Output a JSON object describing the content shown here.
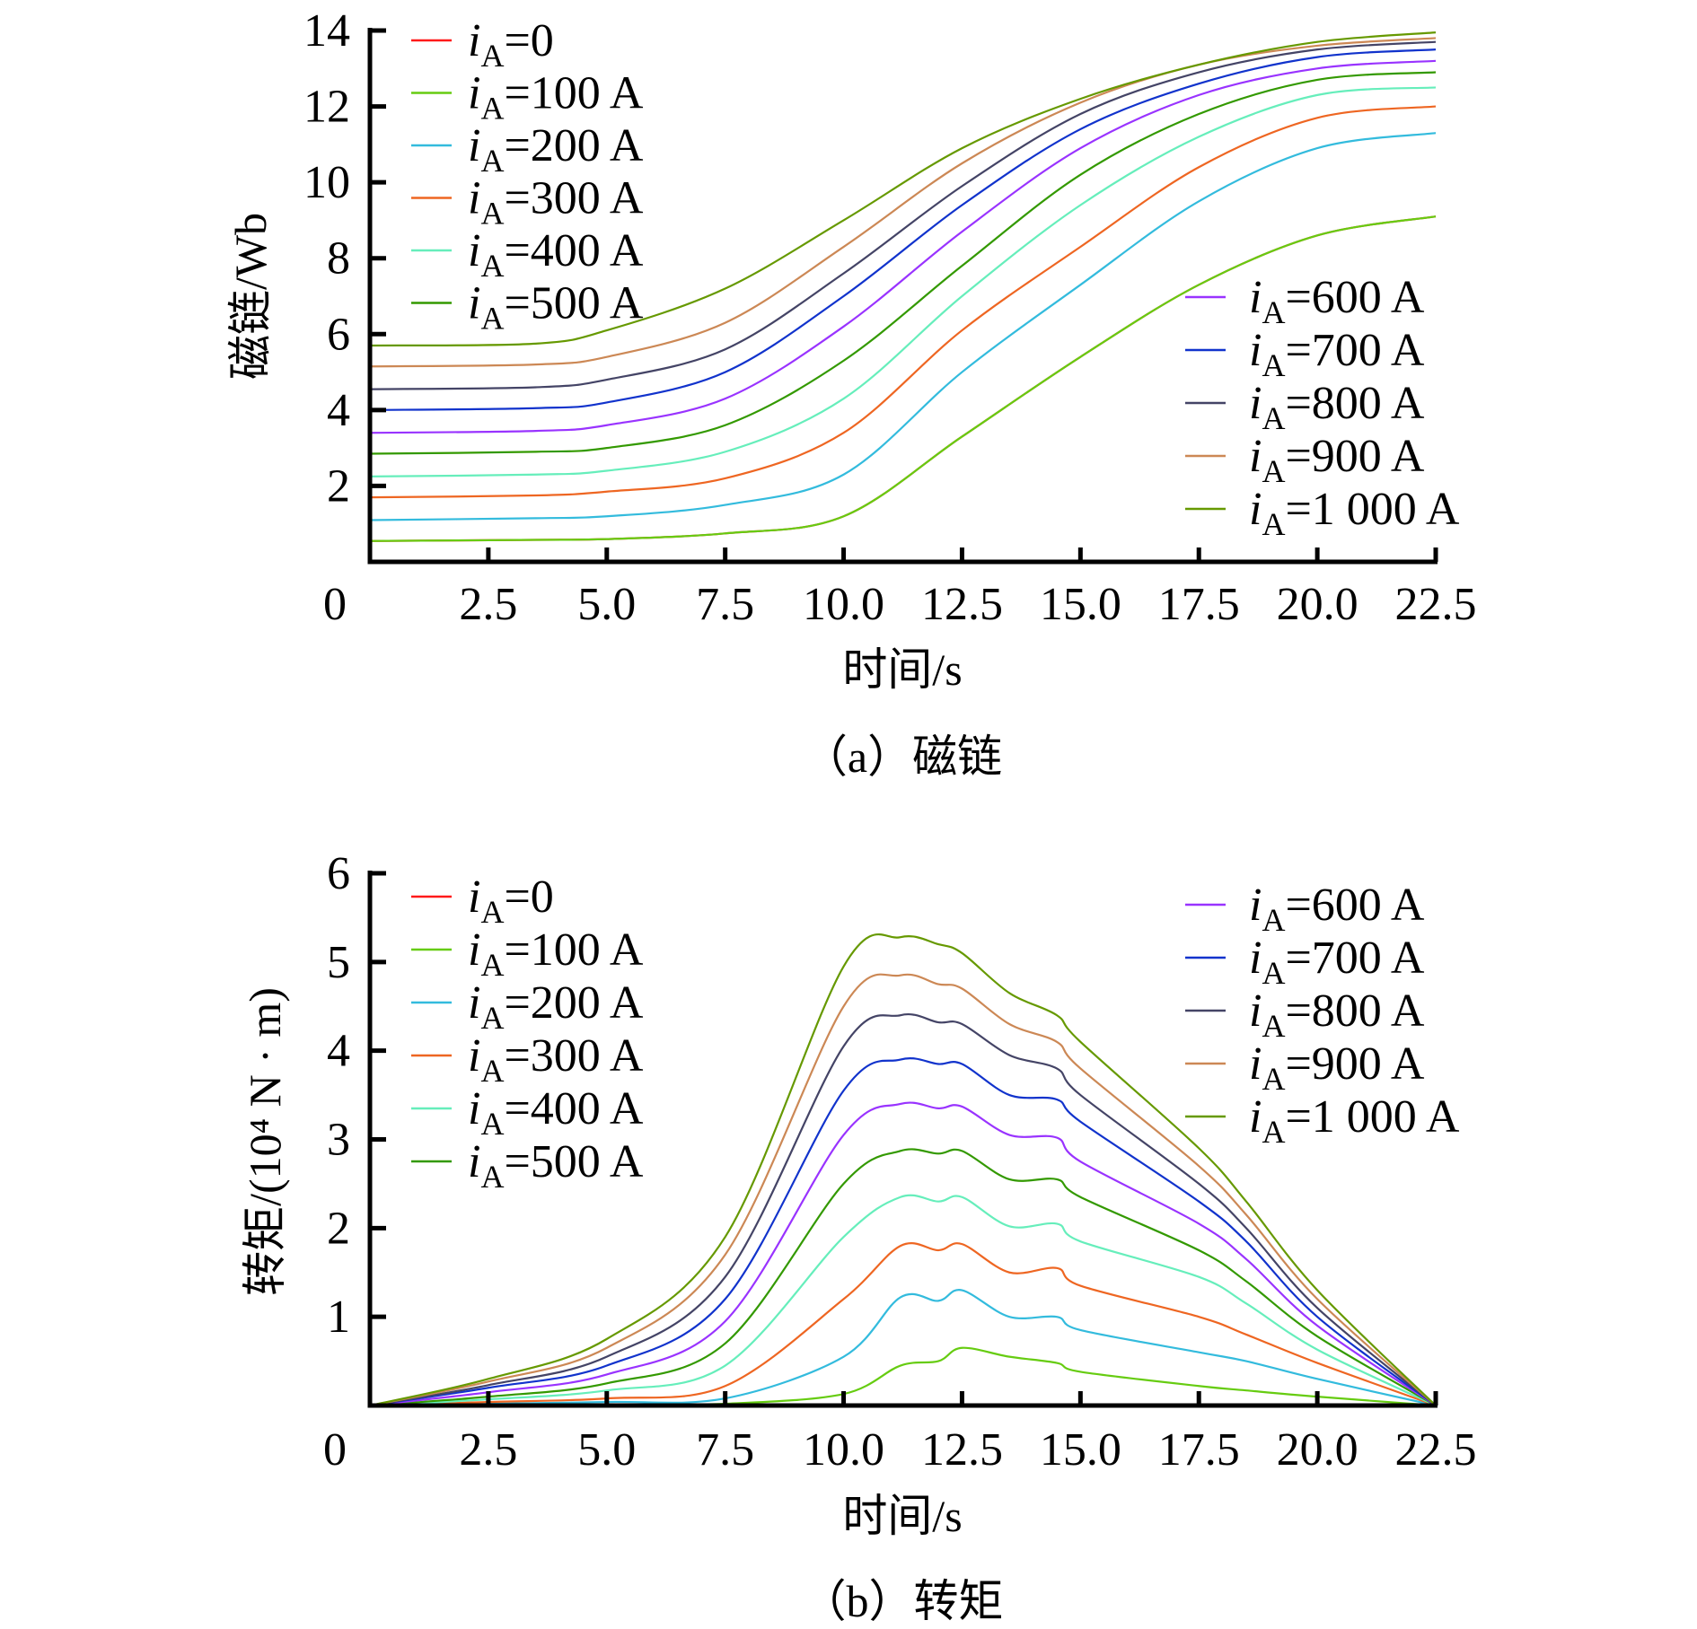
{
  "chart_data": [
    {
      "type": "line",
      "caption": "（a）磁链",
      "xlabel": "时间/s",
      "ylabel": "磁链/Wb",
      "xlim": [
        0,
        22.5
      ],
      "ylim": [
        0,
        14
      ],
      "origin_label": "0",
      "xticks": [
        "2.5",
        "5.0",
        "7.5",
        "10.0",
        "12.5",
        "15.0",
        "17.5",
        "20.0",
        "22.5"
      ],
      "yticks": [
        "2",
        "4",
        "6",
        "8",
        "10",
        "12",
        "14"
      ],
      "grid": false,
      "legend_left_count": 6,
      "x": [
        0,
        3.5,
        5,
        7.5,
        10,
        12.5,
        15,
        17.5,
        20,
        22.5
      ],
      "series": [
        {
          "var": "i",
          "sub": "A",
          "value": "=0",
          "color": "#ff1a1a",
          "y": [
            0.55,
            0.58,
            0.6,
            0.75,
            1.2,
            3.3,
            5.4,
            7.3,
            8.6,
            9.1
          ]
        },
        {
          "var": "i",
          "sub": "A",
          "value": "=100 A",
          "color": "#66cc11",
          "y": [
            0.55,
            0.58,
            0.6,
            0.75,
            1.2,
            3.3,
            5.4,
            7.3,
            8.6,
            9.1
          ]
        },
        {
          "var": "i",
          "sub": "A",
          "value": "=200 A",
          "color": "#33bbdd",
          "y": [
            1.1,
            1.15,
            1.2,
            1.5,
            2.3,
            5.0,
            7.3,
            9.5,
            10.9,
            11.3
          ]
        },
        {
          "var": "i",
          "sub": "A",
          "value": "=300 A",
          "color": "#ee6622",
          "y": [
            1.7,
            1.75,
            1.85,
            2.2,
            3.4,
            6.1,
            8.3,
            10.4,
            11.7,
            12.0
          ]
        },
        {
          "var": "i",
          "sub": "A",
          "value": "=400 A",
          "color": "#66eebb",
          "y": [
            2.25,
            2.3,
            2.4,
            2.9,
            4.3,
            7.0,
            9.4,
            11.2,
            12.3,
            12.5
          ]
        },
        {
          "var": "i",
          "sub": "A",
          "value": "=500 A",
          "color": "#339900",
          "y": [
            2.85,
            2.9,
            3.0,
            3.6,
            5.3,
            7.8,
            10.2,
            11.8,
            12.7,
            12.9
          ]
        },
        {
          "var": "i",
          "sub": "A",
          "value": "=600 A",
          "color": "#9933ff",
          "y": [
            3.4,
            3.45,
            3.6,
            4.3,
            6.2,
            8.7,
            10.9,
            12.3,
            13.0,
            13.2
          ]
        },
        {
          "var": "i",
          "sub": "A",
          "value": "=700 A",
          "color": "#1133cc",
          "y": [
            4.0,
            4.05,
            4.2,
            5.0,
            7.0,
            9.4,
            11.4,
            12.6,
            13.3,
            13.5
          ]
        },
        {
          "var": "i",
          "sub": "A",
          "value": "=800 A",
          "color": "#444466",
          "y": [
            4.55,
            4.6,
            4.8,
            5.6,
            7.6,
            9.9,
            11.8,
            12.9,
            13.5,
            13.7
          ]
        },
        {
          "var": "i",
          "sub": "A",
          "value": "=900 A",
          "color": "#cc8855",
          "y": [
            5.15,
            5.2,
            5.4,
            6.3,
            8.3,
            10.5,
            12.1,
            13.1,
            13.6,
            13.8
          ]
        },
        {
          "var": "i",
          "sub": "A",
          "value": "=1 000 A",
          "color": "#669900",
          "y": [
            5.7,
            5.75,
            6.1,
            7.2,
            9.0,
            10.9,
            12.2,
            13.1,
            13.7,
            13.95
          ]
        }
      ]
    },
    {
      "type": "line",
      "caption": "（b）转矩",
      "xlabel": "时间/s",
      "ylabel": "转矩/(10⁴ N · m)",
      "xlim": [
        0,
        22.5
      ],
      "ylim": [
        0,
        6
      ],
      "origin_label": "0",
      "xticks": [
        "2.5",
        "5.0",
        "7.5",
        "10.0",
        "12.5",
        "15.0",
        "17.5",
        "20.0",
        "22.5"
      ],
      "yticks": [
        "1",
        "2",
        "3",
        "4",
        "5",
        "6"
      ],
      "grid": false,
      "legend_left_count": 6,
      "x": [
        0,
        2.5,
        5,
        7.5,
        10,
        11.2,
        12,
        12.5,
        13.5,
        14.5,
        15,
        17.5,
        18.5,
        20,
        22.5
      ],
      "series": [
        {
          "var": "i",
          "sub": "A",
          "value": "=0",
          "color": "#ff1a1a",
          "y": [
            0,
            0,
            0,
            0,
            0,
            0,
            0,
            0,
            0,
            0,
            0,
            0,
            0,
            0,
            0
          ]
        },
        {
          "var": "i",
          "sub": "A",
          "value": "=100 A",
          "color": "#66cc11",
          "y": [
            0,
            0,
            0.01,
            0.02,
            0.13,
            0.45,
            0.5,
            0.65,
            0.55,
            0.48,
            0.38,
            0.22,
            0.17,
            0.1,
            0
          ]
        },
        {
          "var": "i",
          "sub": "A",
          "value": "=200 A",
          "color": "#33bbdd",
          "y": [
            0,
            0.02,
            0.04,
            0.08,
            0.55,
            1.22,
            1.18,
            1.3,
            1.0,
            1.0,
            0.85,
            0.6,
            0.5,
            0.3,
            0
          ]
        },
        {
          "var": "i",
          "sub": "A",
          "value": "=300 A",
          "color": "#ee6622",
          "y": [
            0,
            0.04,
            0.08,
            0.22,
            1.2,
            1.8,
            1.75,
            1.82,
            1.5,
            1.55,
            1.35,
            1.0,
            0.8,
            0.48,
            0
          ]
        },
        {
          "var": "i",
          "sub": "A",
          "value": "=400 A",
          "color": "#66eebb",
          "y": [
            0,
            0.07,
            0.17,
            0.45,
            1.9,
            2.35,
            2.3,
            2.35,
            2.02,
            2.05,
            1.85,
            1.45,
            1.15,
            0.63,
            0
          ]
        },
        {
          "var": "i",
          "sub": "A",
          "value": "=500 A",
          "color": "#339900",
          "y": [
            0,
            0.1,
            0.25,
            0.7,
            2.5,
            2.87,
            2.84,
            2.87,
            2.55,
            2.55,
            2.35,
            1.75,
            1.4,
            0.78,
            0
          ]
        },
        {
          "var": "i",
          "sub": "A",
          "value": "=600 A",
          "color": "#9933ff",
          "y": [
            0,
            0.15,
            0.35,
            0.95,
            3.05,
            3.4,
            3.35,
            3.37,
            3.05,
            3.02,
            2.75,
            2.05,
            1.65,
            0.9,
            0
          ]
        },
        {
          "var": "i",
          "sub": "A",
          "value": "=700 A",
          "color": "#1133cc",
          "y": [
            0,
            0.2,
            0.45,
            1.2,
            3.55,
            3.9,
            3.85,
            3.85,
            3.5,
            3.45,
            3.2,
            2.3,
            1.85,
            1.0,
            0
          ]
        },
        {
          "var": "i",
          "sub": "A",
          "value": "=800 A",
          "color": "#444466",
          "y": [
            0,
            0.23,
            0.55,
            1.45,
            4.05,
            4.4,
            4.32,
            4.3,
            3.95,
            3.8,
            3.5,
            2.5,
            2.0,
            1.1,
            0
          ]
        },
        {
          "var": "i",
          "sub": "A",
          "value": "=900 A",
          "color": "#cc8855",
          "y": [
            0,
            0.27,
            0.65,
            1.7,
            4.5,
            4.85,
            4.75,
            4.7,
            4.3,
            4.1,
            3.8,
            2.7,
            2.15,
            1.2,
            0
          ]
        },
        {
          "var": "i",
          "sub": "A",
          "value": "=1 000 A",
          "color": "#669900",
          "y": [
            0,
            0.3,
            0.75,
            1.9,
            4.95,
            5.28,
            5.2,
            5.1,
            4.65,
            4.4,
            4.1,
            2.9,
            2.3,
            1.3,
            0
          ]
        }
      ]
    }
  ]
}
